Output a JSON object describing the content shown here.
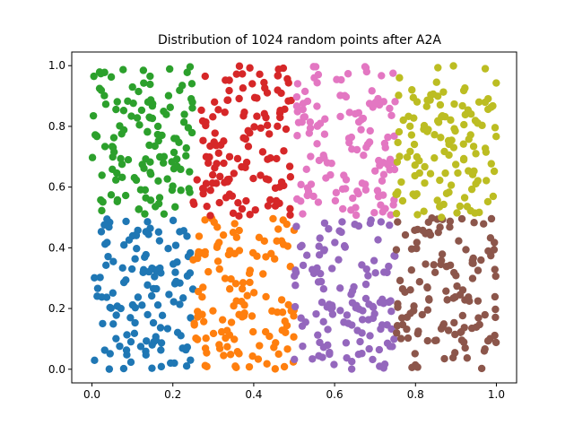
{
  "chart_data": {
    "type": "scatter",
    "title": "Distribution of 1024 random points after A2A",
    "xlabel": "",
    "ylabel": "",
    "xlim": [
      -0.05,
      1.05
    ],
    "ylim": [
      -0.045,
      1.045
    ],
    "x_ticks": [
      0.0,
      0.2,
      0.4,
      0.6,
      0.8,
      1.0
    ],
    "y_ticks": [
      0.0,
      0.2,
      0.4,
      0.6,
      0.8,
      1.0
    ],
    "x_tick_labels": [
      "0.0",
      "0.2",
      "0.4",
      "0.6",
      "0.8",
      "1.0"
    ],
    "y_tick_labels": [
      "0.0",
      "0.2",
      "0.4",
      "0.6",
      "0.8",
      "1.0"
    ],
    "grid": false,
    "legend": "none",
    "total_points": 1024,
    "series": [
      {
        "color": "#1f77b4",
        "x_range": [
          0.0,
          0.25
        ],
        "y_range": [
          0.0,
          0.5
        ],
        "count": 128
      },
      {
        "color": "#ff7f0e",
        "x_range": [
          0.25,
          0.5
        ],
        "y_range": [
          0.0,
          0.5
        ],
        "count": 128
      },
      {
        "color": "#9467bd",
        "x_range": [
          0.5,
          0.75
        ],
        "y_range": [
          0.0,
          0.5
        ],
        "count": 128
      },
      {
        "color": "#8c564b",
        "x_range": [
          0.75,
          1.0
        ],
        "y_range": [
          0.0,
          0.5
        ],
        "count": 128
      },
      {
        "color": "#2ca02c",
        "x_range": [
          0.0,
          0.25
        ],
        "y_range": [
          0.5,
          1.0
        ],
        "count": 128
      },
      {
        "color": "#d62728",
        "x_range": [
          0.25,
          0.5
        ],
        "y_range": [
          0.5,
          1.0
        ],
        "count": 128
      },
      {
        "color": "#e377c2",
        "x_range": [
          0.5,
          0.75
        ],
        "y_range": [
          0.5,
          1.0
        ],
        "count": 128
      },
      {
        "color": "#bcbd22",
        "x_range": [
          0.75,
          1.0
        ],
        "y_range": [
          0.5,
          1.0
        ],
        "count": 128
      }
    ]
  }
}
